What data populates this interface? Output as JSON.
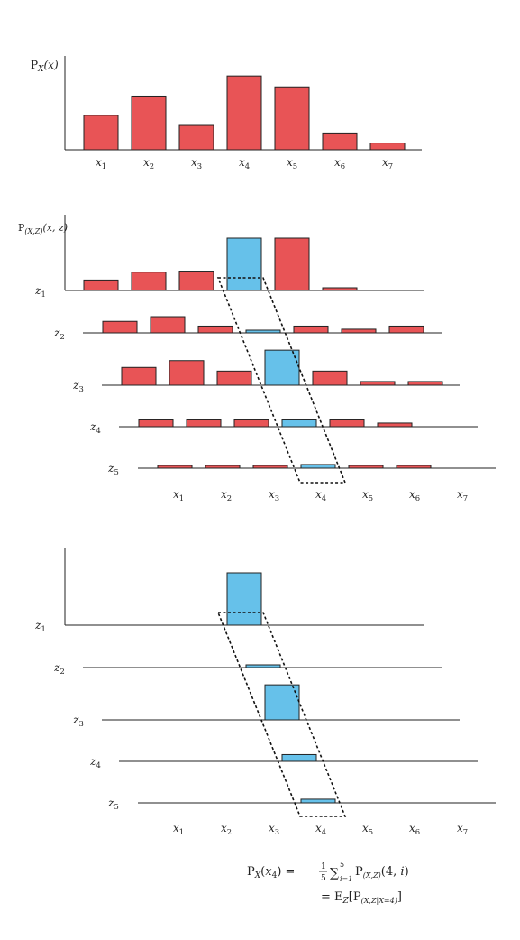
{
  "colors": {
    "marginal": "#e85456",
    "highlight": "#66c1ea"
  },
  "x_labels": [
    "x1",
    "x2",
    "x3",
    "x4",
    "x5",
    "x6",
    "x7"
  ],
  "z_labels": [
    "z1",
    "z2",
    "z3",
    "z4",
    "z5"
  ],
  "panel1": {
    "ylabel": "P_X(x)",
    "values": [
      0.41,
      0.64,
      0.29,
      0.88,
      0.75,
      0.2,
      0.08
    ]
  },
  "panel2": {
    "ylabel": "P_(X,Z)(x,z)",
    "highlight_index": 3,
    "rows": [
      [
        0.2,
        0.35,
        0.37,
        1.0,
        1.0,
        0.05,
        0
      ],
      [
        0.22,
        0.31,
        0.13,
        0.05,
        0.13,
        0.07,
        0.13
      ],
      [
        0.34,
        0.47,
        0.27,
        0.67,
        0.27,
        0.07,
        0.07
      ],
      [
        0.13,
        0.13,
        0.13,
        0.13,
        0.13,
        0.07,
        0
      ],
      [
        0.03,
        0.05,
        0.05,
        0.07,
        0.05,
        0.05,
        0
      ]
    ]
  },
  "panel3": {
    "highlight_index": 3,
    "rows": [
      1.0,
      0.05,
      0.67,
      0.13,
      0.07
    ]
  },
  "formula": {
    "line1_lhs": "P_X(x_4) = ",
    "line1_frac_num": "1",
    "line1_frac_den": "5",
    "line1_sum": "∑",
    "line1_sum_sup": "5",
    "line1_sum_sub": "i=1",
    "line1_rhs": "P_(X,Z)(4, i)",
    "line2": "= E_Z[P_(X,Z|X=4)]"
  }
}
